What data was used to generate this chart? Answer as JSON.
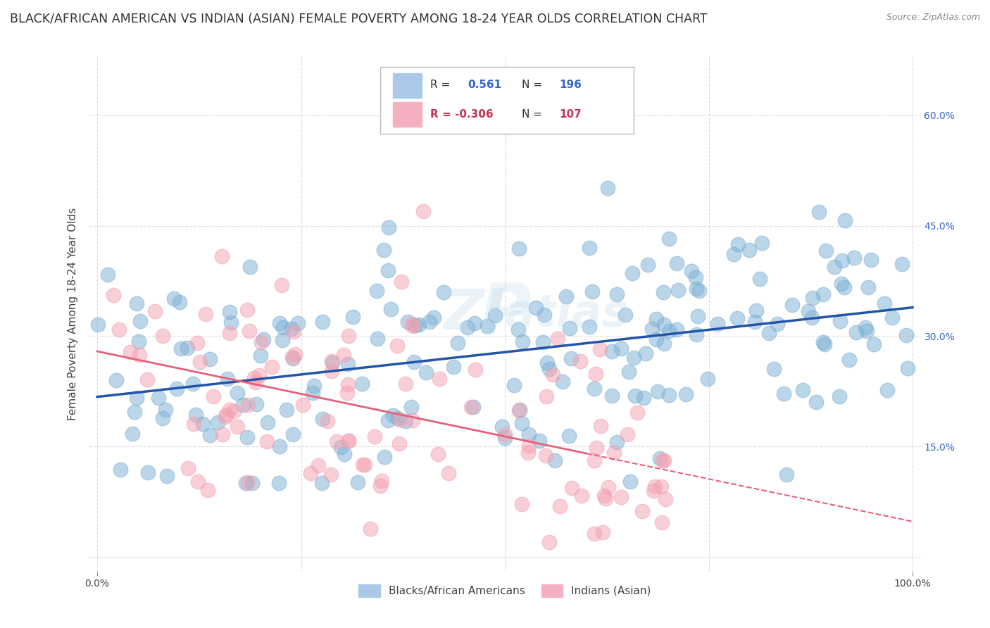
{
  "title": "BLACK/AFRICAN AMERICAN VS INDIAN (ASIAN) FEMALE POVERTY AMONG 18-24 YEAR OLDS CORRELATION CHART",
  "source": "Source: ZipAtlas.com",
  "ylabel": "Female Poverty Among 18-24 Year Olds",
  "xlim": [
    -1,
    101
  ],
  "ylim": [
    -2,
    68
  ],
  "ytick_positions": [
    0,
    15,
    30,
    45,
    60
  ],
  "ytick_labels": [
    "",
    "15.0%",
    "30.0%",
    "45.0%",
    "60.0%"
  ],
  "blue_R": 0.561,
  "blue_N": 196,
  "pink_R": -0.306,
  "pink_N": 107,
  "blue_color": "#7BAFD4",
  "pink_color": "#F4A0B0",
  "blue_line_color": "#2255AA",
  "pink_line_color": "#E8607A",
  "watermark": "ZipAtlas",
  "legend_label_blue": "Blacks/African Americans",
  "legend_label_pink": "Indians (Asian)",
  "background_color": "#ffffff",
  "grid_color": "#cccccc",
  "title_fontsize": 12.5,
  "axis_label_fontsize": 11,
  "tick_label_fontsize": 10,
  "blue_seed": 101,
  "pink_seed": 202,
  "blue_x_mean": 50,
  "blue_x_std": 28,
  "blue_y_intercept": 22.0,
  "blue_slope": 0.115,
  "blue_y_noise": 7.5,
  "pink_x_mean": 28,
  "pink_x_std": 20,
  "pink_y_intercept": 26.0,
  "pink_slope": -0.17,
  "pink_y_noise": 8.5
}
